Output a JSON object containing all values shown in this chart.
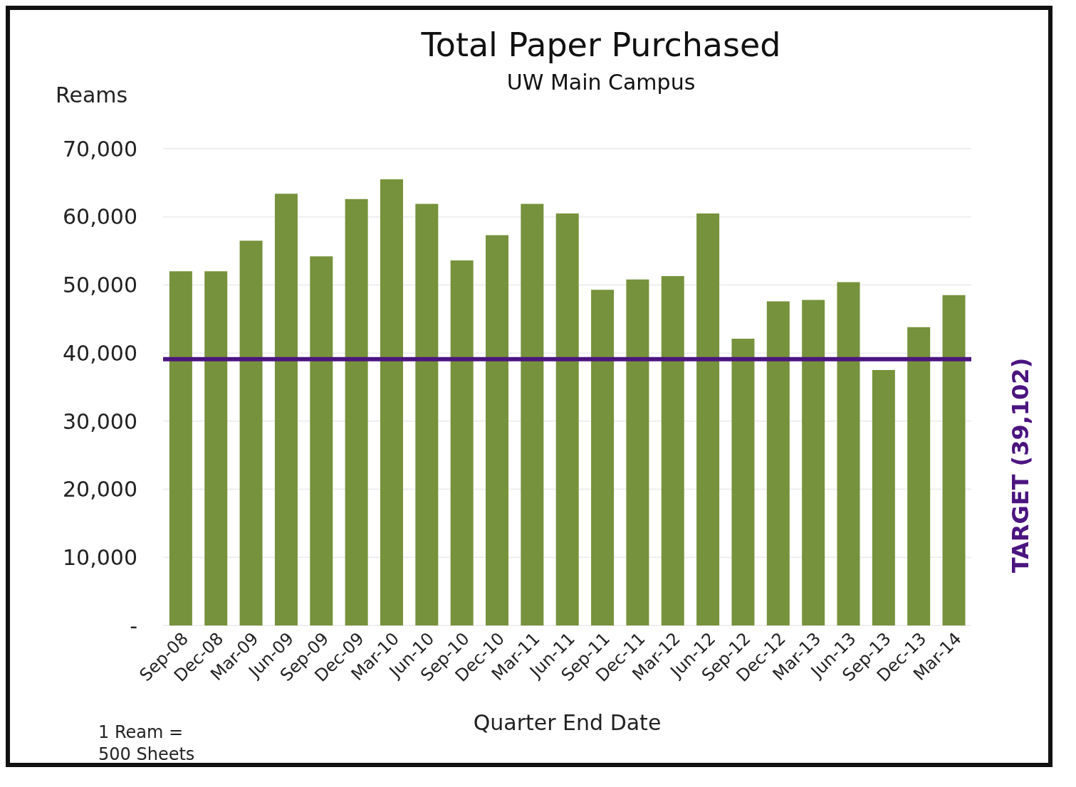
{
  "chart_data": {
    "type": "bar",
    "title": "Total Paper Purchased",
    "subtitle": "UW Main Campus",
    "ylabel": "Reams",
    "xlabel": "Quarter End Date",
    "categories": [
      "Sep-08",
      "Dec-08",
      "Mar-09",
      "Jun-09",
      "Sep-09",
      "Dec-09",
      "Mar-10",
      "Jun-10",
      "Sep-10",
      "Dec-10",
      "Mar-11",
      "Jun-11",
      "Sep-11",
      "Dec-11",
      "Mar-12",
      "Jun-12",
      "Sep-12",
      "Dec-12",
      "Mar-13",
      "Jun-13",
      "Sep-13",
      "Dec-13",
      "Mar-14"
    ],
    "values": [
      52000,
      52000,
      56500,
      63400,
      54200,
      62600,
      65500,
      61900,
      53600,
      57300,
      61900,
      60500,
      49300,
      50800,
      51300,
      60500,
      42100,
      47600,
      47800,
      50400,
      37500,
      43800,
      48500
    ],
    "color": "#76923c",
    "ylim": [
      0,
      70000
    ],
    "yticks": [
      {
        "value": 0,
        "label": "-"
      },
      {
        "value": 10000,
        "label": "10,000"
      },
      {
        "value": 20000,
        "label": "20,000"
      },
      {
        "value": 30000,
        "label": "30,000"
      },
      {
        "value": 40000,
        "label": "40,000"
      },
      {
        "value": 50000,
        "label": "50,000"
      },
      {
        "value": 60000,
        "label": "60,000"
      },
      {
        "value": 70000,
        "label": "70,000"
      }
    ],
    "grid": "y",
    "ref_lines": [
      {
        "axis": "y",
        "value": 39102,
        "label": "TARGET (39,102)",
        "color": "#4b1580"
      }
    ],
    "annotations": [
      "1 Ream = 500 Sheets"
    ]
  }
}
